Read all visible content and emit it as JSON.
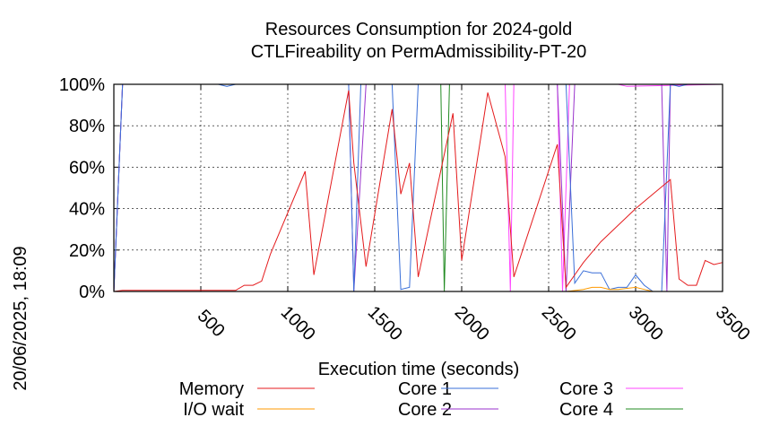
{
  "chart_data": {
    "type": "line",
    "title_line1": "Resources Consumption for 2024-gold",
    "title_line2": "CTLFireability on PermAdmissibility-PT-20",
    "xlabel": "Execution time (seconds)",
    "side_label": "20/06/2025, 18:09",
    "xlim": [
      0,
      3500
    ],
    "ylim": [
      0,
      100
    ],
    "xticks": [
      500,
      1000,
      1500,
      2000,
      2500,
      3000,
      3500
    ],
    "xtick_labels": [
      "500",
      "1000",
      "1500",
      "2000",
      "2500",
      "3000",
      "3500"
    ],
    "yticks": [
      0,
      20,
      40,
      60,
      80,
      100
    ],
    "ytick_labels": [
      "0%",
      "20%",
      "40%",
      "60%",
      "80%",
      "100%"
    ],
    "grid": true,
    "legend_position": "bottom",
    "series": [
      {
        "name": "Memory",
        "color": "#e41a1c",
        "x": [
          0,
          50,
          200,
          400,
          600,
          700,
          750,
          800,
          850,
          900,
          1100,
          1150,
          1350,
          1380,
          1450,
          1600,
          1650,
          1700,
          1750,
          1950,
          2000,
          2150,
          2250,
          2300,
          2550,
          2600,
          2650,
          2700,
          2800,
          2900,
          3000,
          3100,
          3200,
          3250,
          3300,
          3350,
          3400,
          3450,
          3500
        ],
        "y": [
          0,
          0.5,
          0.5,
          0.5,
          0.5,
          0.5,
          3,
          3,
          5,
          18,
          58,
          8,
          97,
          62,
          12,
          88,
          47,
          62,
          7,
          86,
          15,
          96,
          65,
          7,
          71,
          2,
          8,
          14,
          24,
          32,
          40,
          47,
          54,
          6,
          3,
          3,
          15,
          13,
          14
        ]
      },
      {
        "name": "I/O wait",
        "color": "#ff9900",
        "x": [
          0,
          2600,
          2700,
          2750,
          2800,
          2850,
          2900,
          3000,
          3050,
          3100,
          3500
        ],
        "y": [
          0,
          0,
          1,
          2,
          2,
          1,
          1,
          2,
          1,
          0,
          0
        ]
      },
      {
        "name": "Core 1",
        "color": "#3a6fd8",
        "x": [
          0,
          50,
          600,
          650,
          700,
          1350,
          1380,
          1420,
          1450,
          1600,
          1650,
          1700,
          1750,
          2250,
          2300,
          2550,
          2600,
          2650,
          2700,
          2750,
          2800,
          2850,
          2900,
          2950,
          3000,
          3050,
          3100,
          3150,
          3200,
          3250,
          3300,
          3350,
          3500
        ],
        "y": [
          0,
          100,
          100,
          99,
          100,
          100,
          0,
          100,
          100,
          100,
          1,
          2,
          100,
          100,
          100,
          100,
          100,
          4,
          10,
          9,
          9,
          1,
          2,
          2,
          8,
          3,
          0,
          0,
          100,
          99,
          100,
          100,
          100
        ]
      },
      {
        "name": "Core 2",
        "color": "#9932cc",
        "x": [
          0,
          50,
          1350,
          1380,
          1450,
          1600,
          2550,
          2600,
          2650,
          3150,
          3180,
          3200,
          3500
        ],
        "y": [
          0,
          100,
          100,
          0,
          100,
          100,
          100,
          0,
          100,
          100,
          0,
          100,
          100
        ]
      },
      {
        "name": "Core 3",
        "color": "#ff44ff",
        "x": [
          0,
          50,
          1900,
          1930,
          2000,
          2250,
          2280,
          2300,
          2350,
          2550,
          2580,
          2620,
          2900,
          2950,
          3500
        ],
        "y": [
          0,
          100,
          100,
          100,
          100,
          100,
          0,
          100,
          100,
          100,
          0,
          100,
          100,
          99,
          100
        ]
      },
      {
        "name": "Core 4",
        "color": "#228b22",
        "x": [
          0,
          50,
          1880,
          1900,
          1930,
          3500
        ],
        "y": [
          0,
          100,
          100,
          0,
          100,
          100
        ]
      }
    ]
  }
}
